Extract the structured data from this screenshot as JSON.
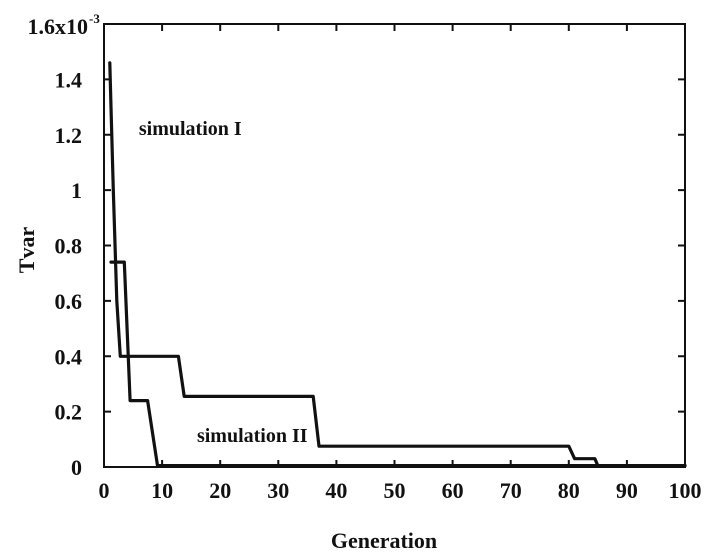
{
  "chart_data": {
    "type": "line",
    "title": "",
    "xlabel": "Generation",
    "ylabel": "Tvar",
    "xlim": [
      0,
      100
    ],
    "ylim": [
      0,
      1.6
    ],
    "x_ticks": [
      0,
      10,
      20,
      30,
      40,
      50,
      60,
      70,
      80,
      90,
      100
    ],
    "x_tick_labels": [
      "0",
      "10",
      "20",
      "30",
      "40",
      "50",
      "60",
      "70",
      "80",
      "90",
      "100"
    ],
    "y_ticks": [
      0,
      0.2,
      0.4,
      0.6,
      0.8,
      1,
      1.2,
      1.4,
      1.6
    ],
    "y_tick_labels": [
      "0",
      "0.2",
      "0.4",
      "0.6",
      "0.8",
      "1",
      "1.2",
      "1.4",
      "1.6x10"
    ],
    "y_top_exponent": "-3",
    "grid": false,
    "annotations": [
      {
        "text": "simulation I",
        "x": 6,
        "y": 1.2
      },
      {
        "text": "simulation II",
        "x": 16,
        "y": 0.09
      }
    ],
    "series": [
      {
        "name": "",
        "points": [
          [
            1,
            1.46
          ],
          [
            1.2,
            1.3
          ],
          [
            1.6,
            1.0
          ],
          [
            2.2,
            0.6
          ],
          [
            2.8,
            0.4
          ],
          [
            12.8,
            0.4
          ],
          [
            13.8,
            0.255
          ],
          [
            36,
            0.255
          ],
          [
            37,
            0.075
          ],
          [
            80,
            0.075
          ],
          [
            81,
            0.03
          ],
          [
            84.5,
            0.03
          ],
          [
            85,
            0.005
          ],
          [
            100,
            0.005
          ]
        ]
      },
      {
        "name": "",
        "points": [
          [
            1.2,
            0.74
          ],
          [
            3.5,
            0.74
          ],
          [
            4.5,
            0.24
          ],
          [
            7.5,
            0.24
          ],
          [
            9.2,
            0.005
          ],
          [
            100,
            0.005
          ]
        ]
      }
    ]
  }
}
